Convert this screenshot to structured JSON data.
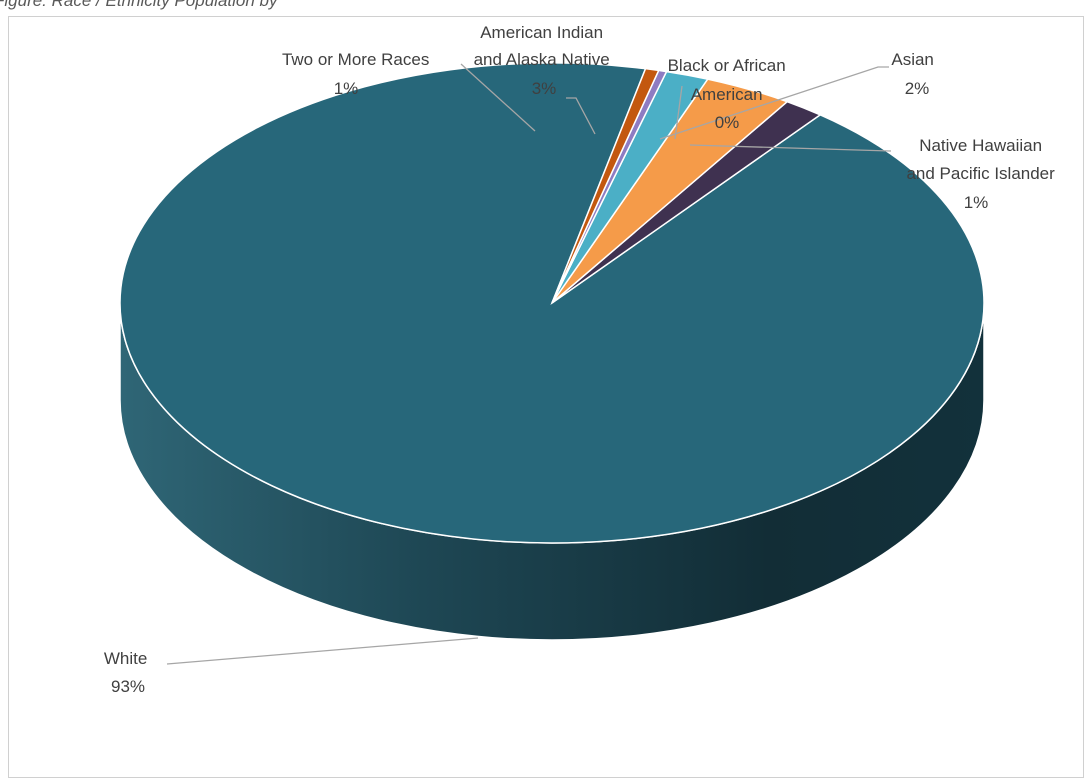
{
  "caption": "Figure: Race / Ethnicity Population by",
  "chart_data": {
    "type": "pie",
    "style": "3d",
    "slices": [
      {
        "label": "White",
        "value": 93,
        "value_text": "93%",
        "color": "#27677A"
      },
      {
        "label": "Two or More Races",
        "value": 1.5,
        "value_text": "1%",
        "color": "#3F3150"
      },
      {
        "label": "American Indian and Alaska Native",
        "value": 3.3,
        "value_text": "3%",
        "color": "#F59B49"
      },
      {
        "label": "Asian",
        "value": 1.6,
        "value_text": "2%",
        "color": "#4BAFC6"
      },
      {
        "label": "Black or African American",
        "value": 0.3,
        "value_text": "0%",
        "color": "#8E7CC2"
      },
      {
        "label": "Native Hawaiian and Pacific Islander",
        "value": 0.5,
        "value_text": "1%",
        "color": "#C3580F"
      }
    ]
  }
}
